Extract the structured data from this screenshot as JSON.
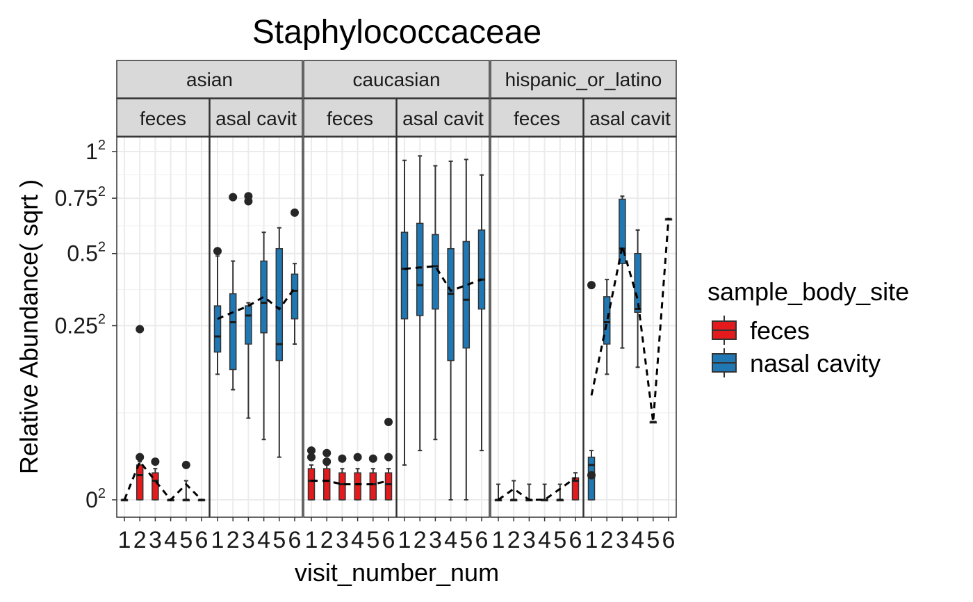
{
  "chart_data": {
    "type": "box",
    "title": "Staphylococcaceae",
    "xlabel": "visit_number_num",
    "ylabel": "Relative Abundance( sqrt )",
    "y_scale": "sqrt",
    "ylim": [
      0,
      1
    ],
    "y_ticks": [
      {
        "value": 0,
        "base": "0",
        "exp": "2"
      },
      {
        "value": 0.25,
        "base": "0.25",
        "exp": "2"
      },
      {
        "value": 0.5,
        "base": "0.5",
        "exp": "2"
      },
      {
        "value": 0.75,
        "base": "0.75",
        "exp": "2"
      },
      {
        "value": 1,
        "base": "1",
        "exp": "2"
      }
    ],
    "x_categories": [
      "1",
      "2",
      "3",
      "4",
      "5",
      "6"
    ],
    "grid": true,
    "legend": {
      "title": "sample_body_site",
      "position": "right",
      "items": [
        {
          "label": "feces",
          "color": "#e41a1c"
        },
        {
          "label": "nasal cavity",
          "color": "#1f78b4"
        }
      ]
    },
    "facet_rows": [
      "asian",
      "caucasian",
      "hispanic_or_latino"
    ],
    "facet_sub_labels": [
      "feces",
      "asal cavit"
    ],
    "panels": [
      {
        "group": "asian",
        "site": "feces",
        "boxes": [
          {
            "x": 1,
            "median": 0,
            "q1": 0,
            "q3": 0,
            "lo": 0,
            "hi": 0
          },
          {
            "x": 2,
            "median": 0.005,
            "q1": 0,
            "q3": 0.01,
            "lo": 0,
            "hi": 0.012
          },
          {
            "x": 3,
            "median": 0.003,
            "q1": 0,
            "q3": 0.006,
            "lo": 0,
            "hi": 0.008
          },
          {
            "x": 4,
            "median": 0,
            "q1": 0,
            "q3": 0,
            "lo": 0,
            "hi": 0
          },
          {
            "x": 5,
            "median": 0,
            "q1": 0,
            "q3": 0,
            "lo": 0,
            "hi": 0.003
          },
          {
            "x": 6,
            "median": 0,
            "q1": 0,
            "q3": 0,
            "lo": 0,
            "hi": 0
          }
        ],
        "outliers": [
          [
            2,
            0.24
          ],
          [
            2,
            0.015
          ],
          [
            3,
            0.012
          ],
          [
            5,
            0.01
          ]
        ],
        "means": [
          0,
          0.012,
          0.003,
          0,
          0.002,
          0
        ]
      },
      {
        "group": "asian",
        "site": "nasal cavity",
        "boxes": [
          {
            "x": 1,
            "median": 0.22,
            "q1": 0.18,
            "q3": 0.31,
            "lo": 0.13,
            "hi": 0.49
          },
          {
            "x": 2,
            "median": 0.26,
            "q1": 0.14,
            "q3": 0.35,
            "lo": 0.1,
            "hi": 0.47
          },
          {
            "x": 3,
            "median": 0.28,
            "q1": 0.2,
            "q3": 0.31,
            "lo": 0.055,
            "hi": 0.32
          },
          {
            "x": 4,
            "median": 0.32,
            "q1": 0.23,
            "q3": 0.47,
            "lo": 0.03,
            "hi": 0.59
          },
          {
            "x": 5,
            "median": 0.2,
            "q1": 0.16,
            "q3": 0.52,
            "lo": 0.015,
            "hi": 0.61
          },
          {
            "x": 6,
            "median": 0.36,
            "q1": 0.27,
            "q3": 0.42,
            "lo": 0.2,
            "hi": 0.46
          }
        ],
        "outliers": [
          [
            1,
            0.51
          ],
          [
            2,
            0.755
          ],
          [
            3,
            0.76
          ],
          [
            3,
            0.735
          ],
          [
            6,
            0.68
          ]
        ],
        "means": [
          0.27,
          0.29,
          0.31,
          0.34,
          0.3,
          0.37
        ]
      },
      {
        "group": "caucasian",
        "site": "feces",
        "boxes": [
          {
            "x": 1,
            "median": 0.003,
            "q1": 0,
            "q3": 0.008,
            "lo": 0,
            "hi": 0.01
          },
          {
            "x": 2,
            "median": 0.003,
            "q1": 0,
            "q3": 0.008,
            "lo": 0,
            "hi": 0.01
          },
          {
            "x": 3,
            "median": 0.002,
            "q1": 0,
            "q3": 0.006,
            "lo": 0,
            "hi": 0.008
          },
          {
            "x": 4,
            "median": 0.002,
            "q1": 0,
            "q3": 0.006,
            "lo": 0,
            "hi": 0.008
          },
          {
            "x": 5,
            "median": 0.002,
            "q1": 0,
            "q3": 0.006,
            "lo": 0,
            "hi": 0.008
          },
          {
            "x": 6,
            "median": 0.002,
            "q1": 0,
            "q3": 0.006,
            "lo": 0,
            "hi": 0.008
          }
        ],
        "outliers": [
          [
            1,
            0.02
          ],
          [
            1,
            0.015
          ],
          [
            2,
            0.018
          ],
          [
            2,
            0.012
          ],
          [
            3,
            0.014
          ],
          [
            4,
            0.015
          ],
          [
            5,
            0.014
          ],
          [
            6,
            0.05
          ],
          [
            6,
            0.015
          ]
        ],
        "means": [
          0.003,
          0.003,
          0.002,
          0.002,
          0.002,
          0.003
        ]
      },
      {
        "group": "caucasian",
        "site": "nasal cavity",
        "boxes": [
          {
            "x": 1,
            "median": 0.44,
            "q1": 0.27,
            "q3": 0.59,
            "lo": 0.01,
            "hi": 0.95
          },
          {
            "x": 2,
            "median": 0.38,
            "q1": 0.28,
            "q3": 0.63,
            "lo": 0.02,
            "hi": 0.975
          },
          {
            "x": 3,
            "median": 0.45,
            "q1": 0.3,
            "q3": 0.58,
            "lo": 0.03,
            "hi": 0.92
          },
          {
            "x": 4,
            "median": 0.35,
            "q1": 0.16,
            "q3": 0.52,
            "lo": 0,
            "hi": 0.945
          },
          {
            "x": 5,
            "median": 0.33,
            "q1": 0.19,
            "q3": 0.55,
            "lo": 0,
            "hi": 0.955
          },
          {
            "x": 6,
            "median": 0.4,
            "q1": 0.3,
            "q3": 0.6,
            "lo": 0.02,
            "hi": 0.87
          }
        ],
        "outliers": [],
        "means": [
          0.44,
          0.445,
          0.45,
          0.36,
          0.38,
          0.4
        ]
      },
      {
        "group": "hispanic_or_latino",
        "site": "feces",
        "boxes": [
          {
            "x": 1,
            "median": 0,
            "q1": 0,
            "q3": 0,
            "lo": 0,
            "hi": 0.002
          },
          {
            "x": 2,
            "median": 0,
            "q1": 0,
            "q3": 0,
            "lo": 0,
            "hi": 0.003
          },
          {
            "x": 3,
            "median": 0,
            "q1": 0,
            "q3": 0,
            "lo": 0,
            "hi": 0.002
          },
          {
            "x": 4,
            "median": 0,
            "q1": 0,
            "q3": 0,
            "lo": 0,
            "hi": 0.002
          },
          {
            "x": 5,
            "median": 0,
            "q1": 0,
            "q3": 0,
            "lo": 0,
            "hi": 0.002
          },
          {
            "x": 6,
            "median": 0.003,
            "q1": 0,
            "q3": 0.004,
            "lo": 0,
            "hi": 0.006
          }
        ],
        "outliers": [],
        "means": [
          0,
          0.001,
          0,
          0,
          0.001,
          0.004
        ]
      },
      {
        "group": "hispanic_or_latino",
        "site": "nasal cavity",
        "boxes": [
          {
            "x": 1,
            "median": 0.01,
            "q1": 0,
            "q3": 0.015,
            "lo": 0,
            "hi": 0.02
          },
          {
            "x": 2,
            "median": 0.26,
            "q1": 0.2,
            "q3": 0.34,
            "lo": 0.13,
            "hi": 0.4
          },
          {
            "x": 3,
            "median": 0.52,
            "q1": 0.46,
            "q3": 0.745,
            "lo": 0.19,
            "hi": 0.76
          },
          {
            "x": 4,
            "median": 0.3,
            "q1": 0.29,
            "q3": 0.5,
            "lo": 0.145,
            "hi": 0.6
          },
          {
            "x": 5,
            "median": 0.05,
            "q1": 0.05,
            "q3": 0.05,
            "lo": 0.05,
            "hi": 0.05
          },
          {
            "x": 6,
            "median": 0.65,
            "q1": 0.65,
            "q3": 0.65,
            "lo": 0.65,
            "hi": 0.65
          }
        ],
        "outliers": [
          [
            1,
            0.38
          ],
          [
            1,
            0.005
          ]
        ],
        "means": [
          0.09,
          0.26,
          0.53,
          0.33,
          0.05,
          0.655
        ]
      }
    ]
  }
}
